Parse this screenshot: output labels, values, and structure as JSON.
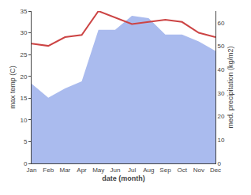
{
  "chart_data": {
    "type": "line",
    "categories": [
      "Jan",
      "Feb",
      "Mar",
      "Apr",
      "May",
      "Jun",
      "Jul",
      "Aug",
      "Sep",
      "Oct",
      "Nov",
      "Dec"
    ],
    "series": [
      {
        "type": "area",
        "color": "#aabbee",
        "axis": "y2",
        "values": [
          34.0,
          28.0,
          32.0,
          35.0,
          57.0,
          57.0,
          63.0,
          62.0,
          55.0,
          55.0,
          52.0,
          48.0
        ]
      },
      {
        "type": "line",
        "color": "#cc4444",
        "values": [
          27.5,
          27.0,
          29.0,
          29.5,
          35.0,
          33.5,
          32.0,
          32.5,
          33.0,
          32.5,
          30.0,
          29.0
        ]
      }
    ],
    "xlabel": "date (month)",
    "ylabel": "max temp (C)",
    "y2label": "med. precipitation (kg/m2)",
    "ylim": [
      0,
      35
    ],
    "yticks": [
      0,
      5,
      10,
      15,
      20,
      25,
      30,
      35
    ],
    "y2lim": [
      0,
      65
    ],
    "y2ticks": [
      0,
      10,
      20,
      30,
      40,
      50,
      60
    ],
    "grid": false
  }
}
